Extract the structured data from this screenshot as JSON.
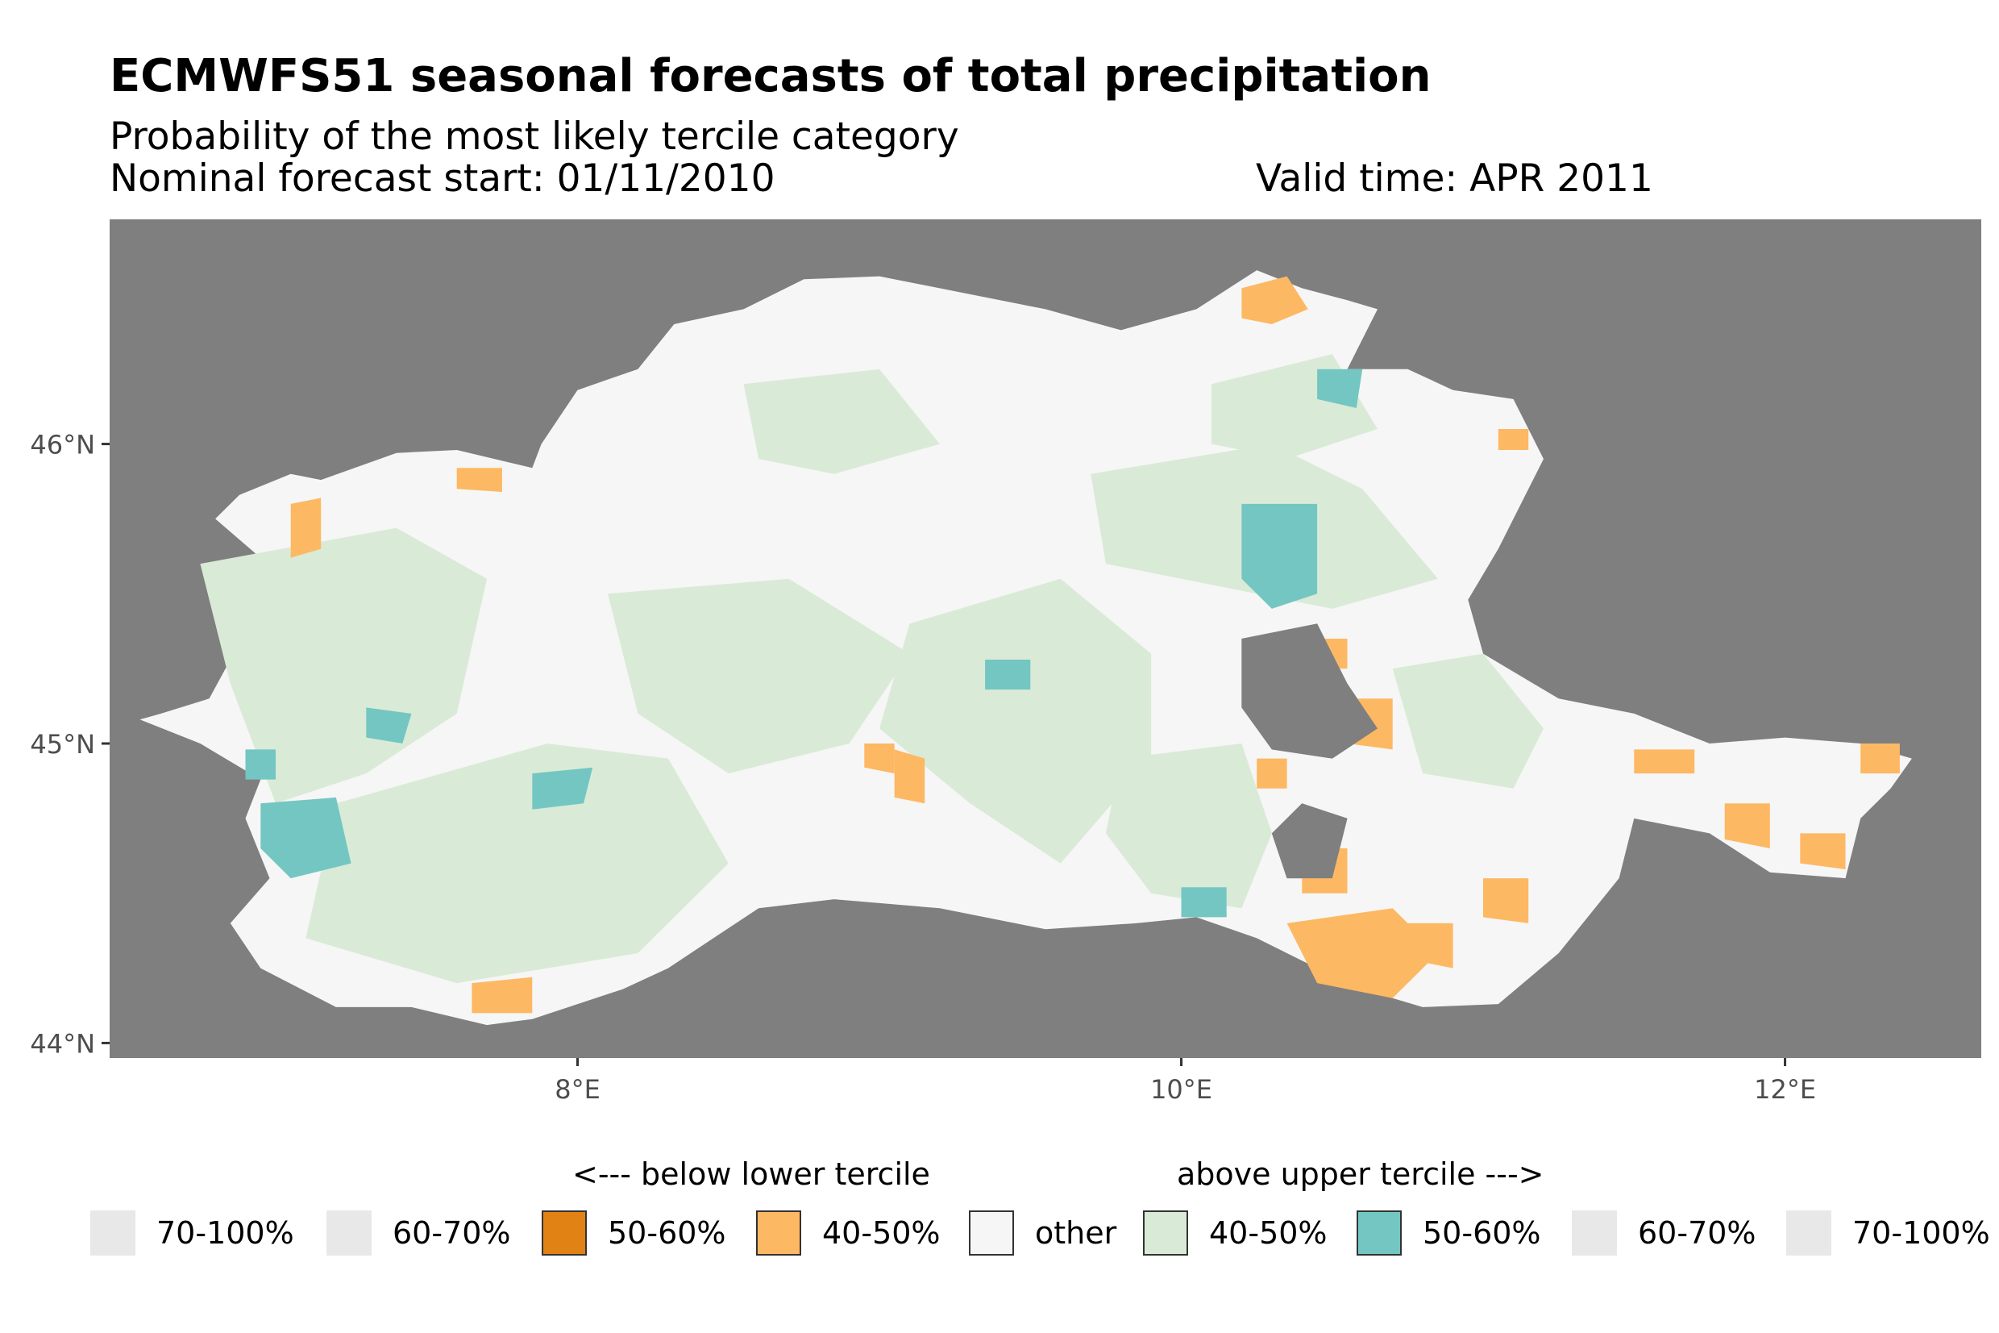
{
  "title": "ECMWFS51 seasonal forecasts of total precipitation",
  "subtitle": "Probability of the most likely tercile category",
  "forecast_start": "Nominal forecast start: 01/11/2010",
  "valid_time": "Valid time: APR 2011",
  "colors": {
    "panel_bg": "#7f7f7f",
    "other": "#f6f6f6",
    "below_70_100": "#e8e8e8",
    "below_60_70": "#e8e8e8",
    "below_50_60": "#e08214",
    "below_40_50": "#fdb863",
    "above_40_50": "#d9ebd6",
    "above_50_60": "#74c6c2",
    "above_60_70": "#e8e8e8",
    "above_70_100": "#e8e8e8"
  },
  "axes": {
    "lon_range": [
      6.45,
      12.65
    ],
    "lat_range": [
      43.95,
      46.75
    ],
    "y_ticks": [
      {
        "value": 44,
        "label": "44°N"
      },
      {
        "value": 45,
        "label": "45°N"
      },
      {
        "value": 46,
        "label": "46°N"
      }
    ],
    "x_ticks": [
      {
        "value": 8,
        "label": "8°E"
      },
      {
        "value": 10,
        "label": "10°E"
      },
      {
        "value": 12,
        "label": "12°E"
      }
    ]
  },
  "legend": {
    "below_title": "<--- below lower tercile",
    "above_title": "above upper tercile --->",
    "items": [
      {
        "label": "70-100%",
        "color": "#e8e8e8",
        "border": false
      },
      {
        "label": "60-70%",
        "color": "#e8e8e8",
        "border": false
      },
      {
        "label": "50-60%",
        "color": "#e08214",
        "border": true
      },
      {
        "label": "40-50%",
        "color": "#fdb863",
        "border": true
      },
      {
        "label": "other",
        "color": "#f6f6f6",
        "border": true
      },
      {
        "label": "40-50%",
        "color": "#d9ebd6",
        "border": true
      },
      {
        "label": "50-60%",
        "color": "#74c6c2",
        "border": true
      },
      {
        "label": "60-70%",
        "color": "#e8e8e8",
        "border": false
      },
      {
        "label": "70-100%",
        "color": "#e8e8e8",
        "border": false
      }
    ]
  },
  "region_outline_lonlat": [
    [
      6.55,
      45.08
    ],
    [
      6.62,
      45.1
    ],
    [
      6.78,
      45.15
    ],
    [
      6.85,
      45.28
    ],
    [
      6.98,
      45.22
    ],
    [
      7.05,
      45.45
    ],
    [
      6.95,
      45.62
    ],
    [
      6.8,
      45.75
    ],
    [
      6.88,
      45.83
    ],
    [
      7.05,
      45.9
    ],
    [
      7.15,
      45.88
    ],
    [
      7.4,
      45.97
    ],
    [
      7.6,
      45.98
    ],
    [
      7.85,
      45.92
    ],
    [
      7.88,
      46.0
    ],
    [
      8.0,
      46.18
    ],
    [
      8.2,
      46.25
    ],
    [
      8.32,
      46.4
    ],
    [
      8.55,
      46.45
    ],
    [
      8.75,
      46.55
    ],
    [
      9.0,
      46.56
    ],
    [
      9.3,
      46.5
    ],
    [
      9.55,
      46.45
    ],
    [
      9.8,
      46.38
    ],
    [
      10.05,
      46.45
    ],
    [
      10.25,
      46.58
    ],
    [
      10.4,
      46.52
    ],
    [
      10.55,
      46.48
    ],
    [
      10.65,
      46.45
    ],
    [
      10.55,
      46.25
    ],
    [
      10.75,
      46.25
    ],
    [
      10.9,
      46.18
    ],
    [
      11.1,
      46.15
    ],
    [
      11.2,
      45.95
    ],
    [
      11.05,
      45.65
    ],
    [
      10.95,
      45.48
    ],
    [
      11.0,
      45.3
    ],
    [
      11.25,
      45.15
    ],
    [
      11.5,
      45.1
    ],
    [
      11.75,
      45.0
    ],
    [
      12.0,
      45.02
    ],
    [
      12.25,
      45.0
    ],
    [
      12.42,
      44.95
    ],
    [
      12.35,
      44.85
    ],
    [
      12.25,
      44.75
    ],
    [
      12.2,
      44.55
    ],
    [
      11.95,
      44.57
    ],
    [
      11.75,
      44.7
    ],
    [
      11.5,
      44.75
    ],
    [
      11.45,
      44.55
    ],
    [
      11.25,
      44.3
    ],
    [
      11.05,
      44.13
    ],
    [
      10.8,
      44.12
    ],
    [
      10.6,
      44.18
    ],
    [
      10.45,
      44.25
    ],
    [
      10.25,
      44.35
    ],
    [
      10.05,
      44.42
    ],
    [
      9.85,
      44.4
    ],
    [
      9.55,
      44.38
    ],
    [
      9.2,
      44.45
    ],
    [
      8.85,
      44.48
    ],
    [
      8.6,
      44.45
    ],
    [
      8.45,
      44.35
    ],
    [
      8.3,
      44.25
    ],
    [
      8.15,
      44.18
    ],
    [
      7.85,
      44.08
    ],
    [
      7.7,
      44.06
    ],
    [
      7.45,
      44.12
    ],
    [
      7.2,
      44.12
    ],
    [
      6.95,
      44.25
    ],
    [
      6.85,
      44.4
    ],
    [
      6.98,
      44.55
    ],
    [
      6.9,
      44.75
    ],
    [
      6.95,
      44.88
    ],
    [
      6.75,
      45.0
    ]
  ],
  "holes_lonlat": [
    [
      [
        10.2,
        45.35
      ],
      [
        10.45,
        45.4
      ],
      [
        10.55,
        45.2
      ],
      [
        10.65,
        45.05
      ],
      [
        10.5,
        44.95
      ],
      [
        10.3,
        44.98
      ],
      [
        10.2,
        45.12
      ]
    ],
    [
      [
        10.4,
        44.8
      ],
      [
        10.55,
        44.75
      ],
      [
        10.5,
        44.55
      ],
      [
        10.35,
        44.55
      ],
      [
        10.3,
        44.7
      ]
    ]
  ],
  "patches": [
    {
      "cat": "above_40_50",
      "pts": [
        [
          6.75,
          45.6
        ],
        [
          7.4,
          45.72
        ],
        [
          7.7,
          45.55
        ],
        [
          7.6,
          45.1
        ],
        [
          7.3,
          44.9
        ],
        [
          7.0,
          44.8
        ],
        [
          6.85,
          45.2
        ]
      ]
    },
    {
      "cat": "above_40_50",
      "pts": [
        [
          7.2,
          44.8
        ],
        [
          7.9,
          45.0
        ],
        [
          8.3,
          44.95
        ],
        [
          8.5,
          44.6
        ],
        [
          8.2,
          44.3
        ],
        [
          7.6,
          44.2
        ],
        [
          7.1,
          44.35
        ]
      ]
    },
    {
      "cat": "above_40_50",
      "pts": [
        [
          8.1,
          45.5
        ],
        [
          8.7,
          45.55
        ],
        [
          9.1,
          45.3
        ],
        [
          8.9,
          45.0
        ],
        [
          8.5,
          44.9
        ],
        [
          8.2,
          45.1
        ]
      ]
    },
    {
      "cat": "above_40_50",
      "pts": [
        [
          9.1,
          45.4
        ],
        [
          9.6,
          45.55
        ],
        [
          9.9,
          45.3
        ],
        [
          9.9,
          44.95
        ],
        [
          9.6,
          44.6
        ],
        [
          9.3,
          44.8
        ],
        [
          9.0,
          45.05
        ]
      ]
    },
    {
      "cat": "above_40_50",
      "pts": [
        [
          9.7,
          45.9
        ],
        [
          10.3,
          46.0
        ],
        [
          10.6,
          45.85
        ],
        [
          10.85,
          45.55
        ],
        [
          10.5,
          45.45
        ],
        [
          10.0,
          45.55
        ],
        [
          9.75,
          45.6
        ]
      ]
    },
    {
      "cat": "above_40_50",
      "pts": [
        [
          10.1,
          46.2
        ],
        [
          10.5,
          46.3
        ],
        [
          10.65,
          46.05
        ],
        [
          10.35,
          45.95
        ],
        [
          10.1,
          46.0
        ]
      ]
    },
    {
      "cat": "above_40_50",
      "pts": [
        [
          9.8,
          44.95
        ],
        [
          10.2,
          45.0
        ],
        [
          10.3,
          44.7
        ],
        [
          10.2,
          44.45
        ],
        [
          9.9,
          44.5
        ],
        [
          9.75,
          44.7
        ]
      ]
    },
    {
      "cat": "above_40_50",
      "pts": [
        [
          10.7,
          45.25
        ],
        [
          11.0,
          45.3
        ],
        [
          11.2,
          45.05
        ],
        [
          11.1,
          44.85
        ],
        [
          10.8,
          44.9
        ]
      ]
    },
    {
      "cat": "above_40_50",
      "pts": [
        [
          8.55,
          46.2
        ],
        [
          9.0,
          46.25
        ],
        [
          9.2,
          46.0
        ],
        [
          8.85,
          45.9
        ],
        [
          8.6,
          45.95
        ]
      ]
    },
    {
      "cat": "above_50_60",
      "pts": [
        [
          10.2,
          45.8
        ],
        [
          10.45,
          45.8
        ],
        [
          10.45,
          45.5
        ],
        [
          10.3,
          45.45
        ],
        [
          10.2,
          45.55
        ]
      ]
    },
    {
      "cat": "above_50_60",
      "pts": [
        [
          6.95,
          44.8
        ],
        [
          7.2,
          44.82
        ],
        [
          7.25,
          44.6
        ],
        [
          7.05,
          44.55
        ],
        [
          6.95,
          44.65
        ]
      ]
    },
    {
      "cat": "above_50_60",
      "pts": [
        [
          7.85,
          44.9
        ],
        [
          8.05,
          44.92
        ],
        [
          8.02,
          44.8
        ],
        [
          7.85,
          44.78
        ]
      ]
    },
    {
      "cat": "above_50_60",
      "pts": [
        [
          9.35,
          45.28
        ],
        [
          9.5,
          45.28
        ],
        [
          9.5,
          45.18
        ],
        [
          9.35,
          45.18
        ]
      ]
    },
    {
      "cat": "above_50_60",
      "pts": [
        [
          10.45,
          46.25
        ],
        [
          10.6,
          46.25
        ],
        [
          10.58,
          46.12
        ],
        [
          10.45,
          46.15
        ]
      ]
    },
    {
      "cat": "above_50_60",
      "pts": [
        [
          10.0,
          44.52
        ],
        [
          10.15,
          44.52
        ],
        [
          10.15,
          44.42
        ],
        [
          10.0,
          44.42
        ]
      ]
    },
    {
      "cat": "above_50_60",
      "pts": [
        [
          7.3,
          45.12
        ],
        [
          7.45,
          45.1
        ],
        [
          7.42,
          45.0
        ],
        [
          7.3,
          45.02
        ]
      ]
    },
    {
      "cat": "above_50_60",
      "pts": [
        [
          6.9,
          44.98
        ],
        [
          7.0,
          44.98
        ],
        [
          7.0,
          44.88
        ],
        [
          6.9,
          44.88
        ]
      ]
    },
    {
      "cat": "below_40_50",
      "pts": [
        [
          10.2,
          46.52
        ],
        [
          10.35,
          46.56
        ],
        [
          10.42,
          46.45
        ],
        [
          10.3,
          46.4
        ],
        [
          10.2,
          46.42
        ]
      ]
    },
    {
      "cat": "below_40_50",
      "pts": [
        [
          7.05,
          45.8
        ],
        [
          7.15,
          45.82
        ],
        [
          7.15,
          45.65
        ],
        [
          7.05,
          45.62
        ]
      ]
    },
    {
      "cat": "below_40_50",
      "pts": [
        [
          7.6,
          45.92
        ],
        [
          7.75,
          45.92
        ],
        [
          7.75,
          45.84
        ],
        [
          7.6,
          45.85
        ]
      ]
    },
    {
      "cat": "below_40_50",
      "pts": [
        [
          7.65,
          44.2
        ],
        [
          7.85,
          44.22
        ],
        [
          7.85,
          44.1
        ],
        [
          7.65,
          44.1
        ]
      ]
    },
    {
      "cat": "below_40_50",
      "pts": [
        [
          9.05,
          44.98
        ],
        [
          9.15,
          44.95
        ],
        [
          9.15,
          44.8
        ],
        [
          9.05,
          44.82
        ]
      ]
    },
    {
      "cat": "below_40_50",
      "pts": [
        [
          8.95,
          45.0
        ],
        [
          9.05,
          45.0
        ],
        [
          9.05,
          44.9
        ],
        [
          8.95,
          44.92
        ]
      ]
    },
    {
      "cat": "below_40_50",
      "pts": [
        [
          10.4,
          45.35
        ],
        [
          10.55,
          45.35
        ],
        [
          10.55,
          45.25
        ],
        [
          10.4,
          45.25
        ]
      ]
    },
    {
      "cat": "below_40_50",
      "pts": [
        [
          10.55,
          45.15
        ],
        [
          10.7,
          45.15
        ],
        [
          10.7,
          44.98
        ],
        [
          10.55,
          45.0
        ]
      ]
    },
    {
      "cat": "below_40_50",
      "pts": [
        [
          10.25,
          44.95
        ],
        [
          10.35,
          44.95
        ],
        [
          10.35,
          44.85
        ],
        [
          10.25,
          44.85
        ]
      ]
    },
    {
      "cat": "below_40_50",
      "pts": [
        [
          10.4,
          44.65
        ],
        [
          10.55,
          44.65
        ],
        [
          10.55,
          44.5
        ],
        [
          10.4,
          44.5
        ]
      ]
    },
    {
      "cat": "below_40_50",
      "pts": [
        [
          10.35,
          44.4
        ],
        [
          10.7,
          44.45
        ],
        [
          10.85,
          44.3
        ],
        [
          10.7,
          44.15
        ],
        [
          10.45,
          44.2
        ]
      ]
    },
    {
      "cat": "below_40_50",
      "pts": [
        [
          10.75,
          44.4
        ],
        [
          10.9,
          44.4
        ],
        [
          10.9,
          44.25
        ],
        [
          10.75,
          44.28
        ]
      ]
    },
    {
      "cat": "below_40_50",
      "pts": [
        [
          11.0,
          44.55
        ],
        [
          11.15,
          44.55
        ],
        [
          11.15,
          44.4
        ],
        [
          11.0,
          44.42
        ]
      ]
    },
    {
      "cat": "below_40_50",
      "pts": [
        [
          11.5,
          44.98
        ],
        [
          11.7,
          44.98
        ],
        [
          11.7,
          44.9
        ],
        [
          11.5,
          44.9
        ]
      ]
    },
    {
      "cat": "below_40_50",
      "pts": [
        [
          11.8,
          44.8
        ],
        [
          11.95,
          44.8
        ],
        [
          11.95,
          44.65
        ],
        [
          11.8,
          44.68
        ]
      ]
    },
    {
      "cat": "below_40_50",
      "pts": [
        [
          12.05,
          44.7
        ],
        [
          12.2,
          44.7
        ],
        [
          12.2,
          44.58
        ],
        [
          12.05,
          44.6
        ]
      ]
    },
    {
      "cat": "below_40_50",
      "pts": [
        [
          12.25,
          45.0
        ],
        [
          12.38,
          45.0
        ],
        [
          12.38,
          44.9
        ],
        [
          12.25,
          44.9
        ]
      ]
    },
    {
      "cat": "below_40_50",
      "pts": [
        [
          11.05,
          46.05
        ],
        [
          11.15,
          46.05
        ],
        [
          11.15,
          45.98
        ],
        [
          11.05,
          45.98
        ]
      ]
    }
  ]
}
